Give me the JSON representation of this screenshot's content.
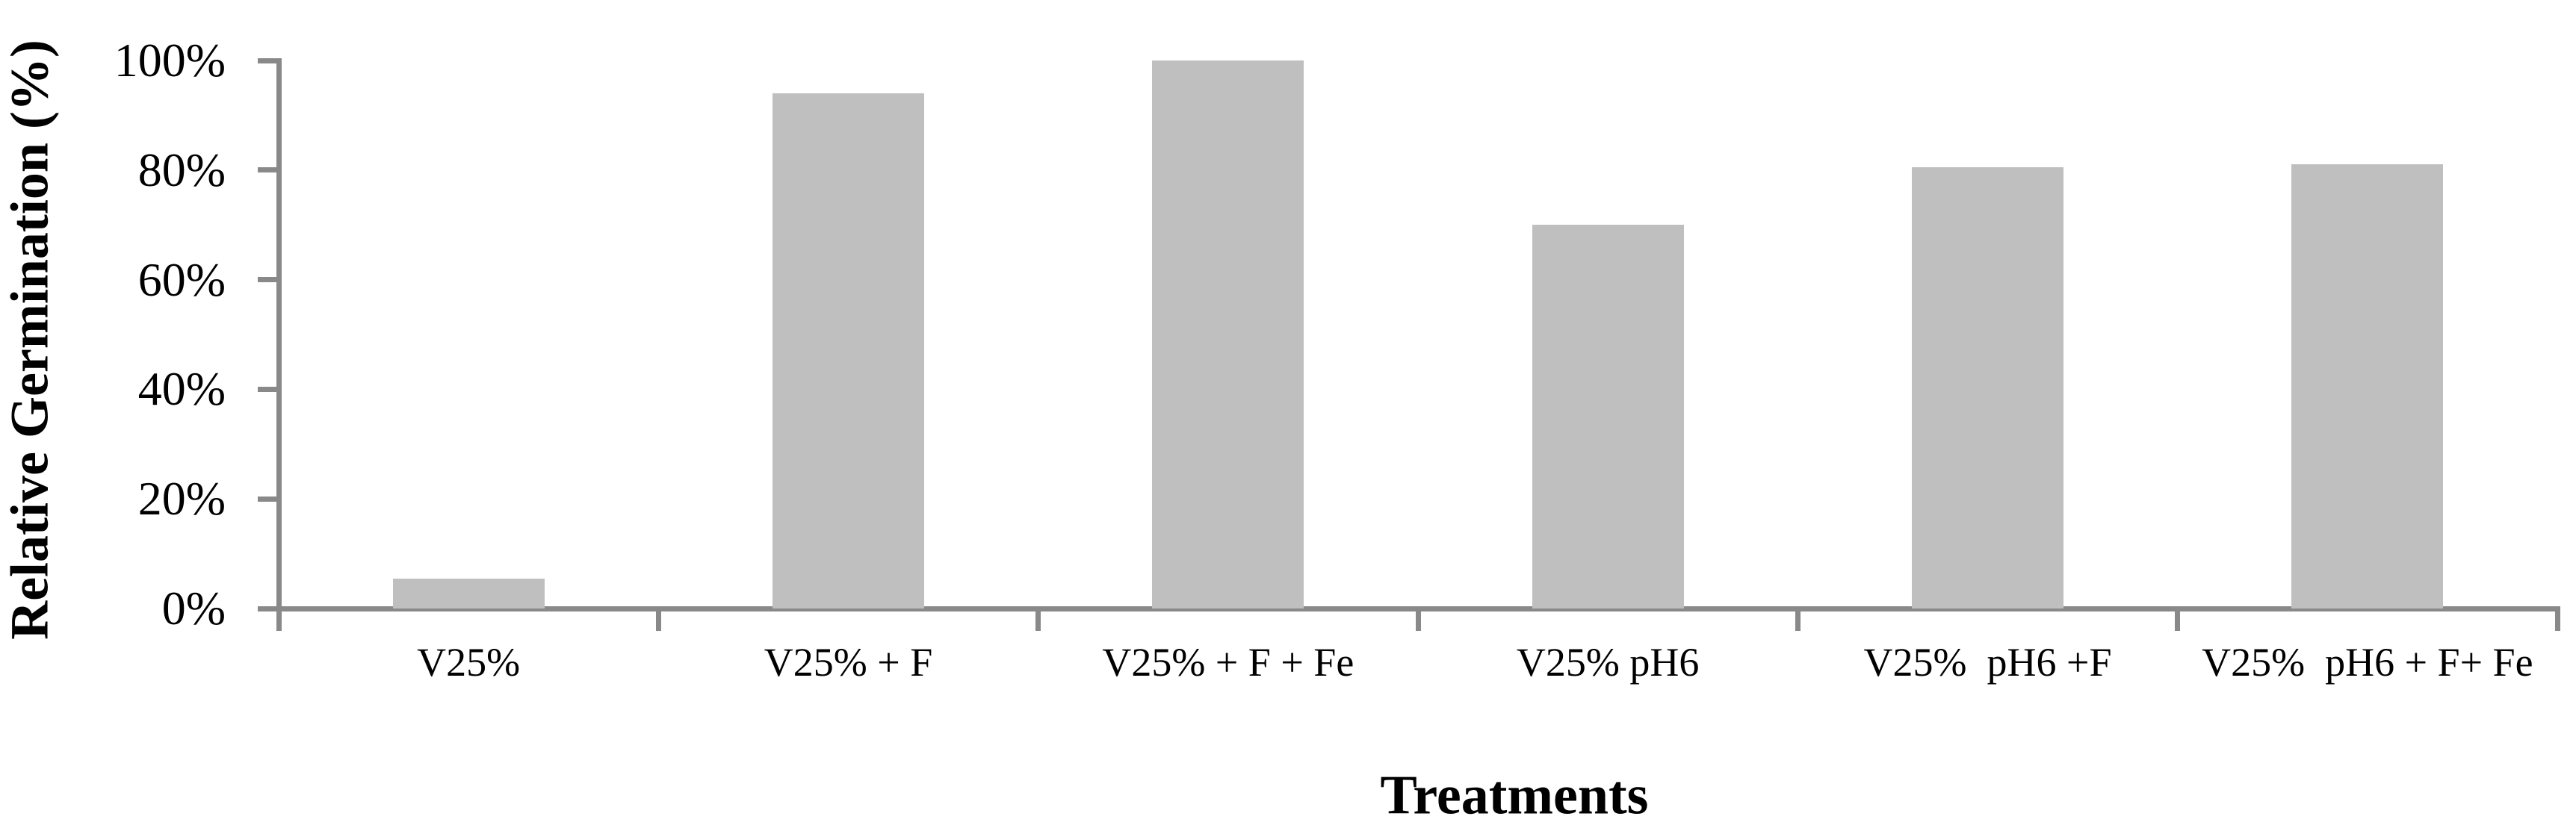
{
  "chart_data": {
    "type": "bar",
    "categories": [
      "V25%",
      "V25% + F",
      "V25% + F + Fe",
      "V25% pH6",
      "V25%  pH6 +F",
      "V25%  pH6 + F+ Fe"
    ],
    "values": [
      5.5,
      94,
      100,
      70,
      80.5,
      81
    ],
    "title": "",
    "xlabel": "Treatments",
    "ylabel": "Relative Germination (%)",
    "ylim": [
      0,
      100
    ],
    "yticks": [
      0,
      20,
      40,
      60,
      80,
      100
    ],
    "ytick_labels": [
      "0%",
      "20%",
      "40%",
      "60%",
      "80%",
      "100%"
    ],
    "legend_position": "none",
    "grid": false,
    "bar_color": "#BFBFBF",
    "axis_color": "#898989",
    "background_color": "#FFFFFF",
    "text_color": "#000000"
  }
}
